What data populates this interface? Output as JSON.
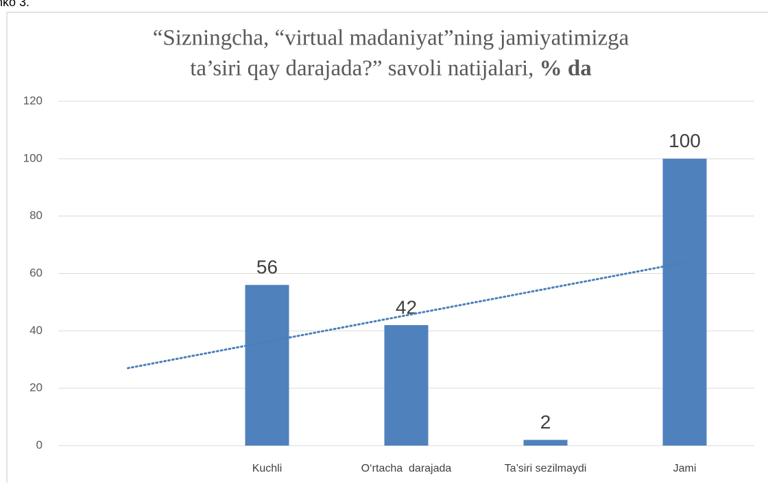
{
  "page_fragment": "nko 3.",
  "chart_data": {
    "type": "bar",
    "title": {
      "line1": "“Sizningcha,  “virtual madaniyat”ning jamiyatimizga",
      "line2": "ta’siri qay darajada?”  savoli natijalari, ",
      "line2_bold": "% da"
    },
    "categories": [
      null,
      "Kuchli",
      "O‘rtacha  darajada",
      "Ta’siri sezilmaydi",
      "Jami"
    ],
    "values": [
      null,
      56,
      42,
      2,
      100
    ],
    "color": "#4f81bd",
    "ylim": [
      0,
      120
    ],
    "yticks": [
      0,
      20,
      40,
      60,
      80,
      100,
      120
    ],
    "grid": true,
    "data_labels": true,
    "trendline": {
      "kind": "linear",
      "style": "dotted",
      "color": "#4a7ebb"
    }
  }
}
